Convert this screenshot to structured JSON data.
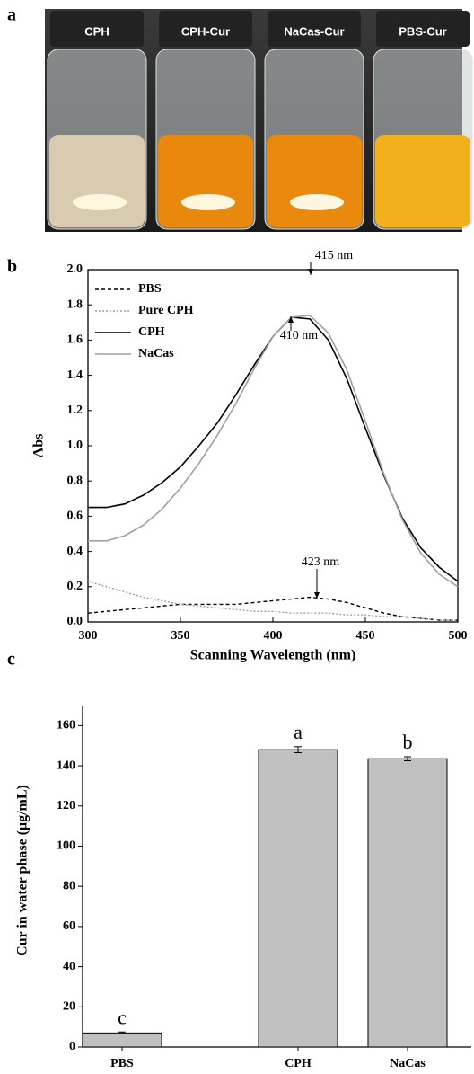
{
  "photo": {
    "panel_label": "a",
    "labels": [
      "CPH",
      "CPH-Cur",
      "NaCas-Cur",
      "PBS-Cur"
    ]
  },
  "chart_data": [
    {
      "type": "line",
      "panel_label": "b",
      "xlabel": "Scanning Wavelength (nm)",
      "ylabel": "Abs",
      "x": [
        300,
        310,
        320,
        330,
        340,
        350,
        360,
        370,
        380,
        390,
        400,
        410,
        420,
        430,
        440,
        450,
        460,
        470,
        480,
        490,
        500
      ],
      "series": [
        {
          "name": "PBS",
          "color": "#000000",
          "line_style": "dashed",
          "values": [
            0.05,
            0.06,
            0.07,
            0.08,
            0.09,
            0.1,
            0.1,
            0.1,
            0.1,
            0.11,
            0.12,
            0.13,
            0.14,
            0.13,
            0.11,
            0.08,
            0.05,
            0.03,
            0.02,
            0.01,
            0.01
          ]
        },
        {
          "name": "Pure CPH",
          "color": "#a0a0a0",
          "line_style": "dotted",
          "values": [
            0.23,
            0.2,
            0.17,
            0.14,
            0.12,
            0.1,
            0.09,
            0.08,
            0.07,
            0.06,
            0.06,
            0.05,
            0.05,
            0.05,
            0.04,
            0.04,
            0.03,
            0.03,
            0.02,
            0.01,
            0.01
          ]
        },
        {
          "name": "CPH",
          "color": "#000000",
          "line_style": "solid",
          "values": [
            0.65,
            0.65,
            0.67,
            0.72,
            0.79,
            0.88,
            1.0,
            1.13,
            1.29,
            1.46,
            1.62,
            1.73,
            1.72,
            1.6,
            1.38,
            1.1,
            0.83,
            0.59,
            0.42,
            0.31,
            0.23
          ]
        },
        {
          "name": "NaCas",
          "color": "#a0a0a0",
          "line_style": "solid",
          "values": [
            0.46,
            0.46,
            0.49,
            0.55,
            0.64,
            0.76,
            0.9,
            1.06,
            1.24,
            1.44,
            1.62,
            1.73,
            1.74,
            1.64,
            1.43,
            1.14,
            0.84,
            0.58,
            0.39,
            0.27,
            0.2
          ]
        }
      ],
      "annotations": [
        "415 nm",
        "410 nm",
        "423 nm"
      ],
      "xlim": [
        300,
        500
      ],
      "xticks": [
        300,
        350,
        400,
        450,
        500
      ],
      "ylim": [
        0,
        2
      ],
      "yticks": [
        {
          "value": 0,
          "label": "0.0"
        },
        0.2,
        0.4,
        0.6,
        0.8,
        {
          "value": 1,
          "label": "1.0"
        },
        1.2,
        1.4,
        1.6,
        1.8,
        {
          "value": 2,
          "label": "2.0"
        }
      ],
      "legend": "upper left"
    },
    {
      "type": "bar",
      "panel_label": "c",
      "ylabel": "Cur in water phase (μg/mL)",
      "categories": [
        "PBS",
        "CPH",
        "NaCas"
      ],
      "values": [
        7,
        148,
        143.5
      ],
      "errors": [
        0.5,
        1.5,
        1
      ],
      "annotations": [
        "c",
        "a",
        "b"
      ],
      "color": "#c0c0c0",
      "ylim": [
        0,
        170
      ],
      "yticks": [
        0,
        20,
        40,
        60,
        80,
        100,
        120,
        140,
        160
      ]
    }
  ]
}
